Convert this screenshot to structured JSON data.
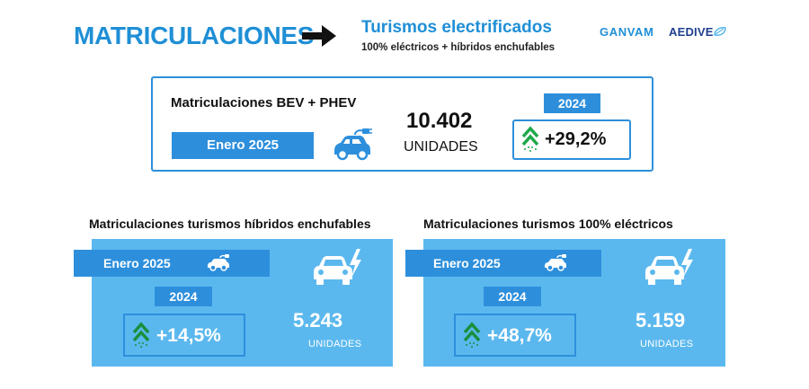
{
  "header": {
    "title": "MATRICULACIONES",
    "subtitle": "Turismos electrificados",
    "caption": "100% eléctricos + híbridos enchufables",
    "logos": [
      "GANVAM",
      "AEDIVE"
    ]
  },
  "summary": {
    "title": "Matriculaciones BEV + PHEV",
    "period": "Enero 2025",
    "value": "10.402",
    "unit": "UNIDADES",
    "comparison_year": "2024",
    "change": "+29,2%"
  },
  "panels": [
    {
      "title": "Matriculaciones turismos híbridos enchufables",
      "period": "Enero 2025",
      "comparison_year": "2024",
      "change": "+14,5%",
      "value": "5.243",
      "unit": "UNIDADES"
    },
    {
      "title": "Matriculaciones turismos 100% eléctricos",
      "period": "Enero 2025",
      "comparison_year": "2024",
      "change": "+48,7%",
      "value": "5.159",
      "unit": "UNIDADES"
    }
  ],
  "icons": [
    "arrow-right-icon",
    "plug-car-icon",
    "trend-up-icon",
    "electric-car-icon"
  ],
  "colors": {
    "primary": "#2d8fdc",
    "panel": "#5bb8ee",
    "title": "#1f8fd6"
  }
}
